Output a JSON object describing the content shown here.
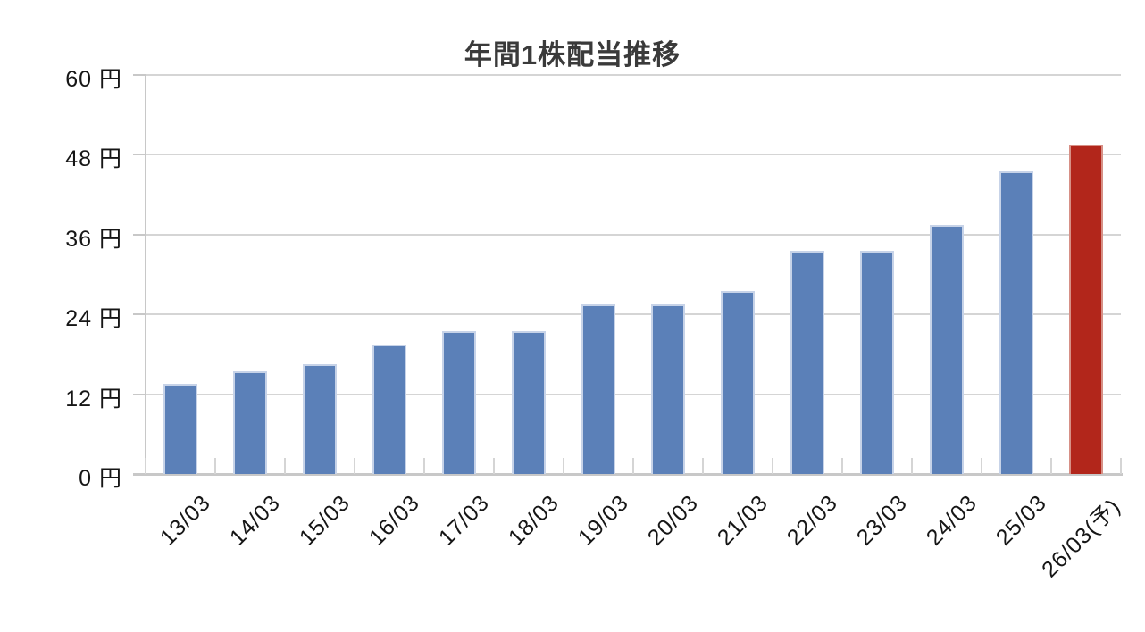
{
  "chart_data": {
    "type": "bar",
    "title": "年間1株配当推移",
    "categories": [
      "13/03",
      "14/03",
      "15/03",
      "16/03",
      "17/03",
      "18/03",
      "19/03",
      "20/03",
      "21/03",
      "22/03",
      "23/03",
      "24/03",
      "25/03",
      "26/03(予)"
    ],
    "values": [
      13.5,
      15.5,
      16.5,
      19.5,
      21.5,
      21.5,
      25.5,
      25.5,
      27.5,
      33.5,
      33.5,
      37.5,
      45.5,
      49.5
    ],
    "highlight_index": 13,
    "highlight_meaning": "forecast (予)",
    "xlabel": "",
    "ylabel": "",
    "y_ticks": [
      0,
      12,
      24,
      36,
      48,
      60
    ],
    "y_tick_suffix": " 円",
    "ylim": [
      0,
      60
    ],
    "grid": true,
    "legend": false,
    "colors": {
      "bar": "#5b80b8",
      "bar_border": "#c7d3e8",
      "highlight_bar": "#b2261b",
      "highlight_border": "#d79086",
      "gridline": "#d5d5d5",
      "axis": "#c8c8c8",
      "label_text": "#161616",
      "title_text": "#3a3a3a"
    }
  }
}
